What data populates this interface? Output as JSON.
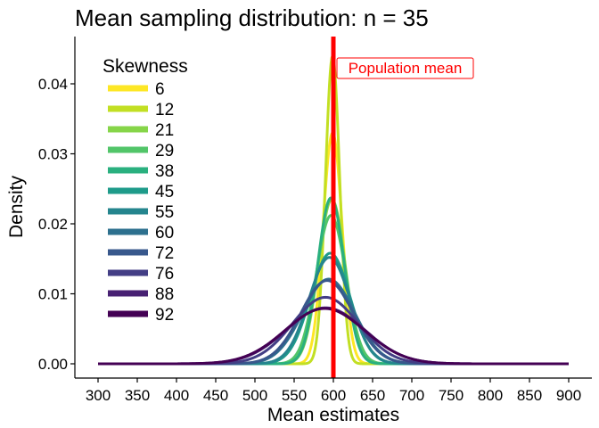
{
  "chart_data": {
    "type": "line",
    "title": "Mean sampling distribution: n = 35",
    "xlabel": "Mean estimates",
    "ylabel": "Density",
    "xlim": [
      300,
      900
    ],
    "ylim": [
      0,
      0.045
    ],
    "x_ticks": [
      300,
      350,
      400,
      450,
      500,
      550,
      600,
      650,
      700,
      750,
      800,
      850,
      900
    ],
    "y_ticks": [
      0,
      0.01,
      0.02,
      0.03,
      0.04
    ],
    "y_tick_labels": [
      "0.00",
      "0.01",
      "0.02",
      "0.03",
      "0.04"
    ],
    "grid": false,
    "legend": {
      "title": "Skewness",
      "placement": "top-left"
    },
    "reference_line": {
      "x": 600,
      "label": "Population mean",
      "color": "#ff0000"
    },
    "series": [
      {
        "name": "6",
        "color": "#FDE725",
        "peak": 0.033,
        "mode": 599
      },
      {
        "name": "12",
        "color": "#C2DF23",
        "peak": 0.044,
        "mode": 599
      },
      {
        "name": "21",
        "color": "#86D549",
        "peak": 0.0235,
        "mode": 598
      },
      {
        "name": "29",
        "color": "#52C569",
        "peak": 0.0212,
        "mode": 597
      },
      {
        "name": "38",
        "color": "#2AB07F",
        "peak": 0.0237,
        "mode": 597
      },
      {
        "name": "45",
        "color": "#1E9B8A",
        "peak": 0.0158,
        "mode": 596
      },
      {
        "name": "55",
        "color": "#25858E",
        "peak": 0.0152,
        "mode": 595
      },
      {
        "name": "60",
        "color": "#2D708E",
        "peak": 0.0121,
        "mode": 594
      },
      {
        "name": "72",
        "color": "#38588C",
        "peak": 0.0119,
        "mode": 592
      },
      {
        "name": "76",
        "color": "#433E85",
        "peak": 0.0095,
        "mode": 590
      },
      {
        "name": "88",
        "color": "#482173",
        "peak": 0.008,
        "mode": 590
      },
      {
        "name": "92",
        "color": "#440154",
        "peak": 0.0079,
        "mode": 589
      }
    ]
  }
}
